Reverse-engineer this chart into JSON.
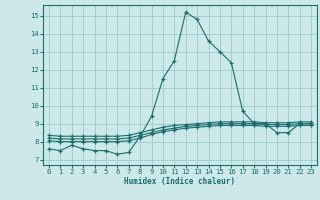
{
  "xlabel": "Humidex (Indice chaleur)",
  "bg_color": "#cce8e8",
  "grid_color": "#99cccc",
  "line_color": "#1a6e6e",
  "x_ticks": [
    0,
    1,
    2,
    3,
    4,
    5,
    6,
    7,
    8,
    9,
    10,
    11,
    12,
    13,
    14,
    15,
    16,
    17,
    18,
    19,
    20,
    21,
    22,
    23
  ],
  "y_ticks": [
    7,
    8,
    9,
    10,
    11,
    12,
    13,
    14,
    15
  ],
  "xlim": [
    -0.5,
    23.5
  ],
  "ylim": [
    6.7,
    15.6
  ],
  "line1_y": [
    7.6,
    7.5,
    7.8,
    7.6,
    7.5,
    7.5,
    7.3,
    7.4,
    8.3,
    9.4,
    11.5,
    12.5,
    15.2,
    14.8,
    13.6,
    13.0,
    12.4,
    9.7,
    9.0,
    9.0,
    8.5,
    8.5,
    9.0,
    9.0
  ],
  "line2_y": [
    8.05,
    8.0,
    8.0,
    8.0,
    8.0,
    8.0,
    8.0,
    8.05,
    8.2,
    8.4,
    8.55,
    8.65,
    8.75,
    8.8,
    8.85,
    8.9,
    8.9,
    8.9,
    8.9,
    8.85,
    8.85,
    8.85,
    8.9,
    8.9
  ],
  "line3_y": [
    8.2,
    8.15,
    8.15,
    8.15,
    8.15,
    8.15,
    8.15,
    8.2,
    8.35,
    8.5,
    8.65,
    8.75,
    8.85,
    8.9,
    8.95,
    9.0,
    9.0,
    9.0,
    9.0,
    8.95,
    8.95,
    8.95,
    9.0,
    9.0
  ],
  "line4_y": [
    8.35,
    8.3,
    8.3,
    8.3,
    8.3,
    8.3,
    8.3,
    8.35,
    8.5,
    8.65,
    8.8,
    8.9,
    8.95,
    9.0,
    9.05,
    9.1,
    9.1,
    9.1,
    9.1,
    9.05,
    9.05,
    9.05,
    9.1,
    9.1
  ]
}
